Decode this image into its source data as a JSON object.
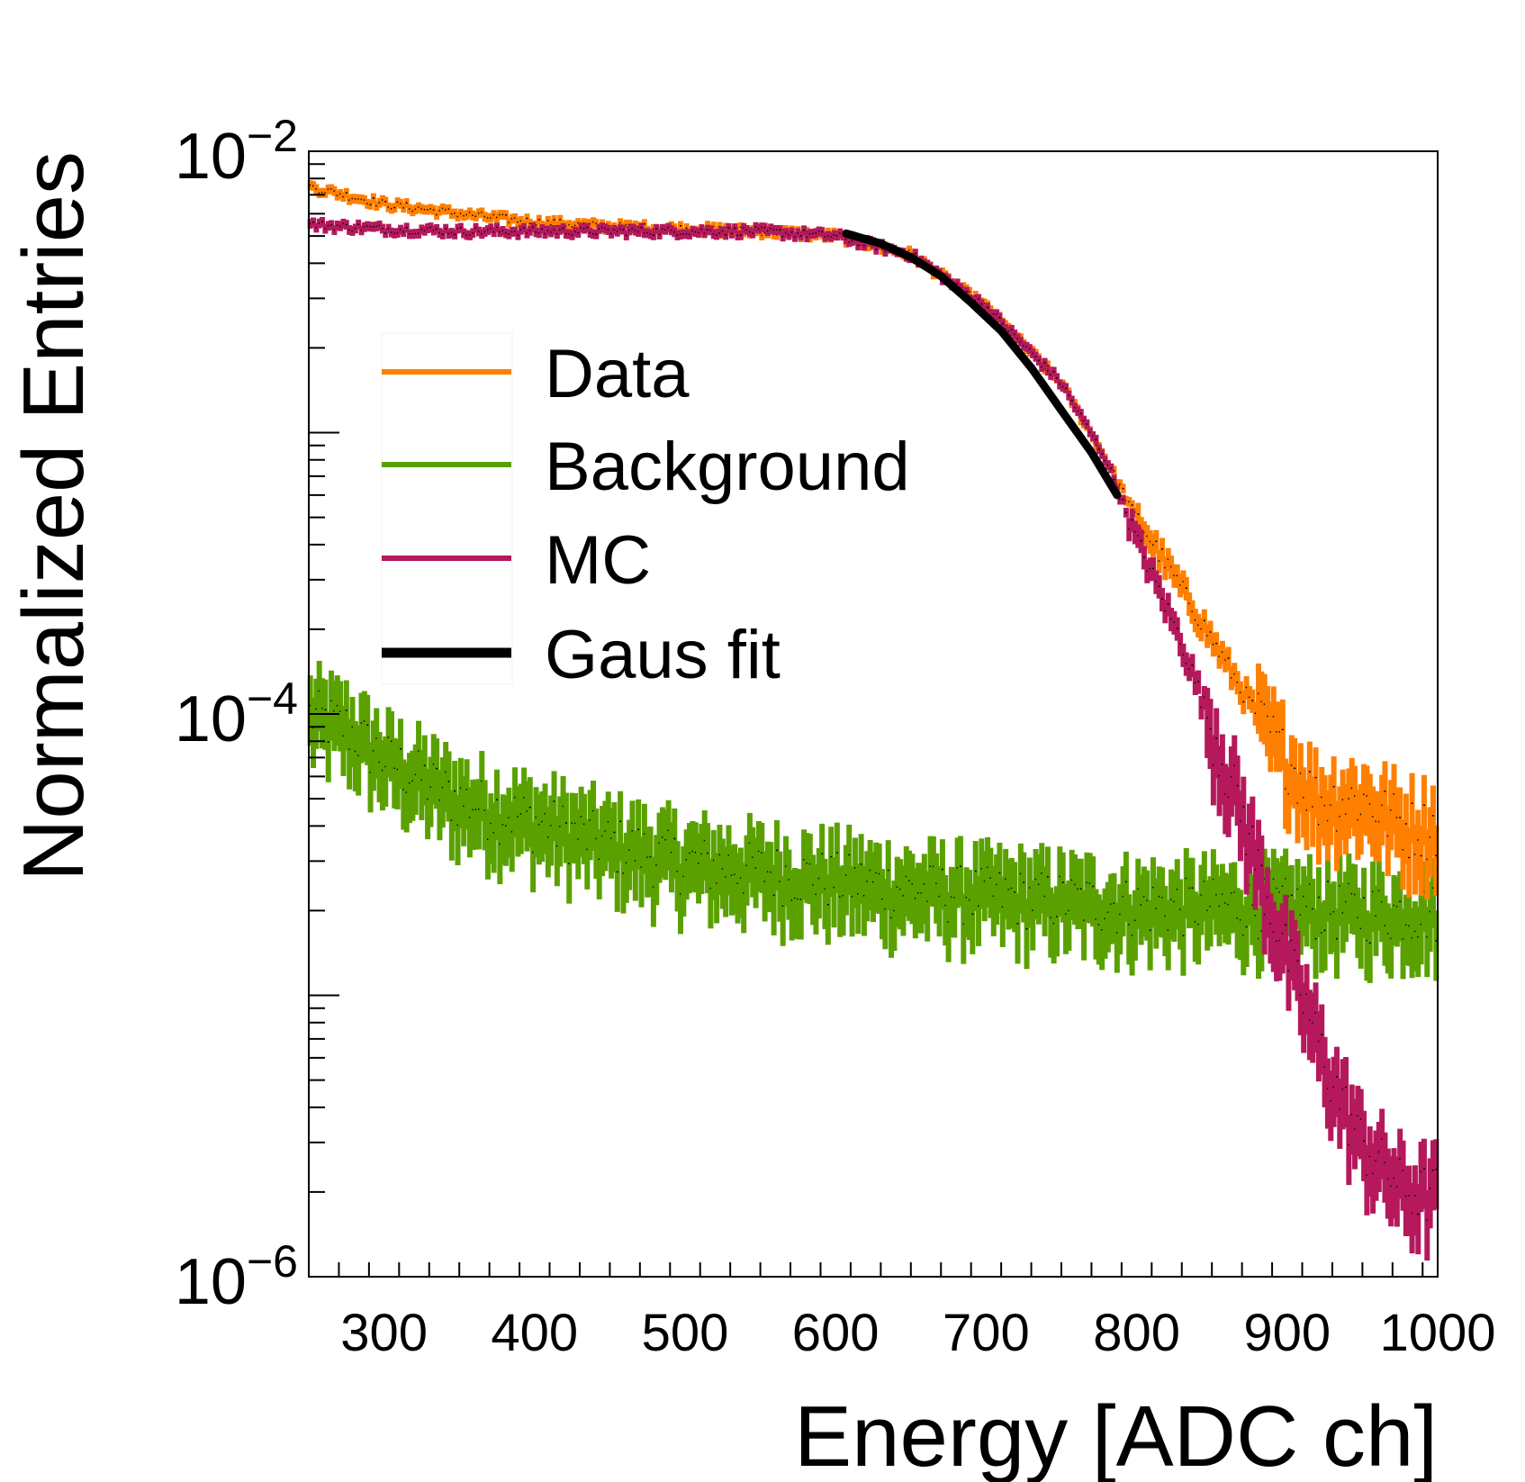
{
  "chart_data": {
    "type": "histogram",
    "scale_y": "log",
    "xlabel": "Energy [ADC ch]",
    "ylabel": "Normalized Entries",
    "xlim": [
      250,
      1000
    ],
    "ylim": [
      1e-06,
      0.01
    ],
    "x_ticks": [
      {
        "value": 300,
        "label": "300"
      },
      {
        "value": 400,
        "label": "400"
      },
      {
        "value": 500,
        "label": "500"
      },
      {
        "value": 600,
        "label": "600"
      },
      {
        "value": 700,
        "label": "700"
      },
      {
        "value": 800,
        "label": "800"
      },
      {
        "value": 900,
        "label": "900"
      },
      {
        "value": 1000,
        "label": "1000"
      }
    ],
    "y_ticks": [
      {
        "value": 0.01,
        "base": "10",
        "exp": "−2"
      },
      {
        "value": 0.0001,
        "base": "10",
        "exp": "−4"
      },
      {
        "value": 1e-06,
        "base": "10",
        "exp": "−6"
      }
    ],
    "series": [
      {
        "name": "Data",
        "color": "#ff7f00",
        "x": [
          250,
          300,
          350,
          400,
          450,
          500,
          550,
          600,
          650,
          700,
          750,
          780,
          800,
          830,
          860,
          880,
          900,
          920,
          950,
          980,
          1000
        ],
        "values": [
          0.0075,
          0.0065,
          0.006,
          0.0056,
          0.0054,
          0.0053,
          0.0052,
          0.005,
          0.0043,
          0.0028,
          0.0015,
          0.0008,
          0.0005,
          0.00028,
          0.00015,
          0.0001,
          7e-05,
          5e-05,
          5e-05,
          4e-05,
          4e-05
        ]
      },
      {
        "name": "Background",
        "color": "#5aa100",
        "x": [
          250,
          275,
          300,
          350,
          400,
          450,
          500,
          550,
          600,
          650,
          700,
          750,
          800,
          850,
          900,
          950,
          1000
        ],
        "values": [
          0.0001,
          9e-05,
          7e-05,
          5e-05,
          4.2e-05,
          3.5e-05,
          3e-05,
          2.8e-05,
          2.6e-05,
          2.4e-05,
          2.3e-05,
          2.2e-05,
          2.1e-05,
          2.1e-05,
          2.1e-05,
          2e-05,
          2e-05
        ]
      },
      {
        "name": "MC",
        "color": "#b5195c",
        "x": [
          250,
          300,
          350,
          400,
          450,
          500,
          550,
          600,
          650,
          700,
          750,
          780,
          800,
          830,
          850,
          870,
          890,
          910,
          930,
          950,
          980,
          1000
        ],
        "values": [
          0.0055,
          0.0053,
          0.0052,
          0.0052,
          0.0052,
          0.0052,
          0.0052,
          0.005,
          0.0043,
          0.0028,
          0.0015,
          0.0008,
          0.00042,
          0.00018,
          9e-05,
          4.5e-05,
          2e-05,
          1e-05,
          5e-06,
          3e-06,
          2e-06,
          2e-06
        ]
      }
    ],
    "fit": {
      "name": "Gaus fit",
      "color": "#000000",
      "x": [
        607,
        630,
        650,
        670,
        690,
        710,
        730,
        750,
        770,
        787
      ],
      "values": [
        0.0051,
        0.0047,
        0.0042,
        0.0036,
        0.0029,
        0.0023,
        0.0017,
        0.0012,
        0.00085,
        0.0006
      ]
    },
    "legend": {
      "position": "upper-left",
      "entries": [
        {
          "label": "Data",
          "color": "#ff7f00",
          "kind": "line"
        },
        {
          "label": "Background",
          "color": "#5aa100",
          "kind": "line"
        },
        {
          "label": "MC",
          "color": "#b5195c",
          "kind": "line"
        },
        {
          "label": "Gaus fit",
          "color": "#000000",
          "kind": "thick-line"
        }
      ]
    },
    "grid": false
  }
}
